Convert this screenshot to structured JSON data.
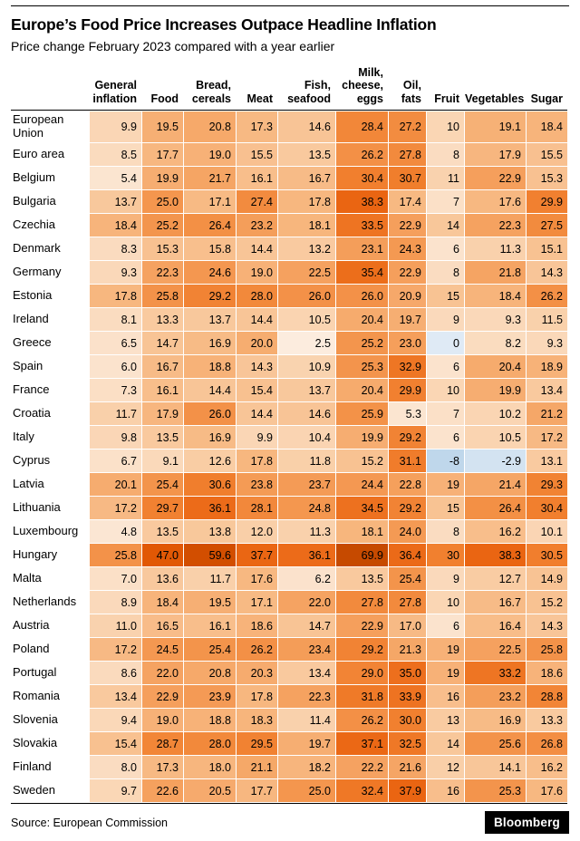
{
  "footer": {
    "source": "Source: European Commission",
    "brand": "Bloomberg"
  },
  "chart_data": {
    "type": "heatmap",
    "title": "Europe’s Food Price Increases Outpace Headline Inflation",
    "subtitle": "Price change February 2023 compared with a year earlier",
    "unit": "percent change year over year",
    "columns": [
      "General\ninflation",
      "Food",
      "Bread,\ncereals",
      "Meat",
      "Fish,\nseafood",
      "Milk,\ncheese,\neggs",
      "Oil,\nfats",
      "Fruit",
      "Vegetables",
      "Sugar"
    ],
    "rows": [
      {
        "country": "European Union",
        "values": [
          9.9,
          19.5,
          20.8,
          17.3,
          14.6,
          28.4,
          27.2,
          10,
          19.1,
          18.4
        ]
      },
      {
        "country": "Euro area",
        "values": [
          8.5,
          17.7,
          19.0,
          15.5,
          13.5,
          26.2,
          27.8,
          8,
          17.9,
          15.5
        ]
      },
      {
        "country": "Belgium",
        "values": [
          5.4,
          19.9,
          21.7,
          16.1,
          16.7,
          30.4,
          30.7,
          11,
          22.9,
          15.3
        ]
      },
      {
        "country": "Bulgaria",
        "values": [
          13.7,
          25.0,
          17.1,
          27.4,
          17.8,
          38.3,
          17.4,
          7,
          17.6,
          29.9
        ]
      },
      {
        "country": "Czechia",
        "values": [
          18.4,
          25.2,
          26.4,
          23.2,
          18.1,
          33.5,
          22.9,
          14,
          22.3,
          27.5
        ]
      },
      {
        "country": "Denmark",
        "values": [
          8.3,
          15.3,
          15.8,
          14.4,
          13.2,
          23.1,
          24.3,
          6,
          11.3,
          15.1
        ]
      },
      {
        "country": "Germany",
        "values": [
          9.3,
          22.3,
          24.6,
          19.0,
          22.5,
          35.4,
          22.9,
          8,
          21.8,
          14.3
        ]
      },
      {
        "country": "Estonia",
        "values": [
          17.8,
          25.8,
          29.2,
          28.0,
          26.0,
          26.0,
          20.9,
          15,
          18.4,
          26.2
        ]
      },
      {
        "country": "Ireland",
        "values": [
          8.1,
          13.3,
          13.7,
          14.4,
          10.5,
          20.4,
          19.7,
          9,
          9.3,
          11.5
        ]
      },
      {
        "country": "Greece",
        "values": [
          6.5,
          14.7,
          16.9,
          20.0,
          2.5,
          25.2,
          23.0,
          0,
          8.2,
          9.3
        ]
      },
      {
        "country": "Spain",
        "values": [
          6.0,
          16.7,
          18.8,
          14.3,
          10.9,
          25.3,
          32.9,
          6,
          20.4,
          18.9
        ]
      },
      {
        "country": "France",
        "values": [
          7.3,
          16.1,
          14.4,
          15.4,
          13.7,
          20.4,
          29.9,
          10,
          19.9,
          13.4
        ]
      },
      {
        "country": "Croatia",
        "values": [
          11.7,
          17.9,
          26.0,
          14.4,
          14.6,
          25.9,
          5.3,
          7,
          10.2,
          21.2
        ]
      },
      {
        "country": "Italy",
        "values": [
          9.8,
          13.5,
          16.9,
          9.9,
          10.4,
          19.9,
          29.2,
          6,
          10.5,
          17.2
        ]
      },
      {
        "country": "Cyprus",
        "values": [
          6.7,
          9.1,
          12.6,
          17.8,
          11.8,
          15.2,
          31.1,
          -8,
          -2.9,
          13.1
        ]
      },
      {
        "country": "Latvia",
        "values": [
          20.1,
          25.4,
          30.6,
          23.8,
          23.7,
          24.4,
          22.8,
          19,
          21.4,
          29.3
        ]
      },
      {
        "country": "Lithuania",
        "values": [
          17.2,
          29.7,
          36.1,
          28.1,
          24.8,
          34.5,
          29.2,
          15,
          26.4,
          30.4
        ]
      },
      {
        "country": "Luxembourg",
        "values": [
          4.8,
          13.5,
          13.8,
          12.0,
          11.3,
          18.1,
          24.0,
          8,
          16.2,
          10.1
        ]
      },
      {
        "country": "Hungary",
        "values": [
          25.8,
          47.0,
          59.6,
          37.7,
          36.1,
          69.9,
          36.4,
          30,
          38.3,
          30.5
        ]
      },
      {
        "country": "Malta",
        "values": [
          7.0,
          13.6,
          11.7,
          17.6,
          6.2,
          13.5,
          25.4,
          9,
          12.7,
          14.9
        ]
      },
      {
        "country": "Netherlands",
        "values": [
          8.9,
          18.4,
          19.5,
          17.1,
          22.0,
          27.8,
          27.8,
          10,
          16.7,
          15.2
        ]
      },
      {
        "country": "Austria",
        "values": [
          11.0,
          16.5,
          16.1,
          18.6,
          14.7,
          22.9,
          17.0,
          6,
          16.4,
          14.3
        ]
      },
      {
        "country": "Poland",
        "values": [
          17.2,
          24.5,
          25.4,
          26.2,
          23.4,
          29.2,
          21.3,
          19,
          22.5,
          25.8
        ]
      },
      {
        "country": "Portugal",
        "values": [
          8.6,
          22.0,
          20.8,
          20.3,
          13.4,
          29.0,
          35.0,
          19,
          33.2,
          18.6
        ]
      },
      {
        "country": "Romania",
        "values": [
          13.4,
          22.9,
          23.9,
          17.8,
          22.3,
          31.8,
          33.9,
          16,
          23.2,
          28.8
        ]
      },
      {
        "country": "Slovenia",
        "values": [
          9.4,
          19.0,
          18.8,
          18.3,
          11.4,
          26.2,
          30.0,
          13,
          16.9,
          13.3
        ]
      },
      {
        "country": "Slovakia",
        "values": [
          15.4,
          28.7,
          28.0,
          29.5,
          19.7,
          37.1,
          32.5,
          14,
          25.6,
          26.8
        ]
      },
      {
        "country": "Finland",
        "values": [
          8.0,
          17.3,
          18.0,
          21.1,
          18.2,
          22.2,
          21.6,
          12,
          14.1,
          16.2
        ]
      },
      {
        "country": "Sweden",
        "values": [
          9.7,
          22.6,
          20.5,
          17.7,
          25.0,
          32.4,
          37.9,
          16,
          25.3,
          17.6
        ]
      }
    ],
    "integer_column_index": 7,
    "color_scale": {
      "positive_stops": [
        [
          0,
          "#fdf3ea"
        ],
        [
          6,
          "#fbe3cd"
        ],
        [
          12,
          "#f9cfa8"
        ],
        [
          18,
          "#f7b67e"
        ],
        [
          24,
          "#f49a54"
        ],
        [
          30,
          "#f1802f"
        ],
        [
          38,
          "#ea6512"
        ],
        [
          48,
          "#e05604"
        ],
        [
          60,
          "#d14e00"
        ],
        [
          75,
          "#c04800"
        ]
      ],
      "zero": "#dfeaf5",
      "negative": "#b7d2e8",
      "negative_limit": -10
    }
  }
}
